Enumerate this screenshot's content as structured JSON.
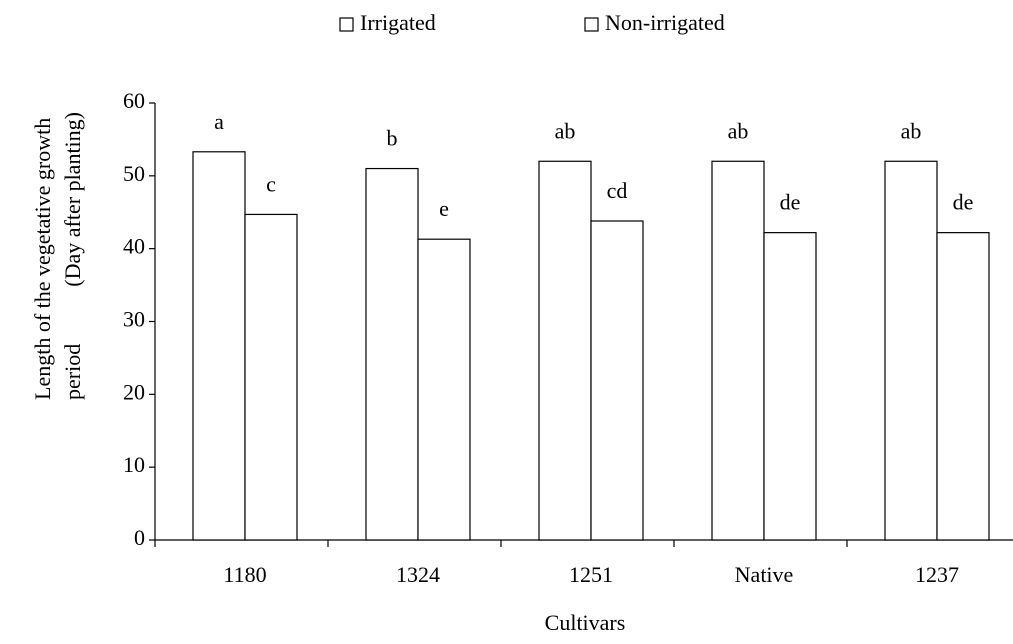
{
  "chart_data": {
    "type": "bar",
    "categories": [
      "1180",
      "1324",
      "1251",
      "Native",
      "1237"
    ],
    "series": [
      {
        "name": "Irrigated",
        "color": "#ffffff",
        "values": [
          53.3,
          51,
          52,
          52,
          52
        ],
        "letters": [
          "a",
          "b",
          "ab",
          "ab",
          "ab"
        ]
      },
      {
        "name": "Non-irrigated",
        "color": "#ffffff",
        "values": [
          44.7,
          41.3,
          43.8,
          42.2,
          42.2
        ],
        "letters": [
          "c",
          "e",
          "cd",
          "de",
          "de"
        ]
      }
    ],
    "ylim": [
      0,
      60
    ],
    "yticks": [
      0,
      10,
      20,
      30,
      40,
      50,
      60
    ],
    "x_label": "Cultivars",
    "y_label": [
      "Length of the vegetative growth",
      "period",
      "(Day after planting)"
    ],
    "legend": "top",
    "grid": false
  }
}
